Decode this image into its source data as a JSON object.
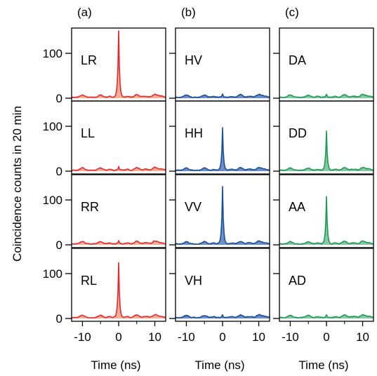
{
  "figure": {
    "ylabel": "Coincidence counts in 20 min",
    "xlabel": "Time (ns)"
  },
  "chart_data": {
    "type": "area",
    "xlim": [
      -13,
      13
    ],
    "ylim": [
      0,
      150
    ],
    "x_ticks": [
      -10,
      0,
      10
    ],
    "x_tick_labels": [
      "-10",
      "0",
      "10"
    ],
    "y_ticks": [
      0,
      100
    ],
    "y_tick_labels": [
      "0",
      "100"
    ],
    "colors": {
      "red": "#e8282d",
      "blue": "#1a4f9c",
      "green": "#1f9a56"
    },
    "columns": [
      {
        "label": "(a)",
        "color": "red",
        "show_y_ticks": true,
        "rows": [
          {
            "name": "LR",
            "peak": 150
          },
          {
            "name": "LL",
            "peak": 8
          },
          {
            "name": "RR",
            "peak": 8
          },
          {
            "name": "RL",
            "peak": 122
          }
        ]
      },
      {
        "label": "(b)",
        "color": "blue",
        "show_y_ticks": false,
        "rows": [
          {
            "name": "HV",
            "peak": 8
          },
          {
            "name": "HH",
            "peak": 95
          },
          {
            "name": "VV",
            "peak": 128
          },
          {
            "name": "VH",
            "peak": 6
          }
        ]
      },
      {
        "label": "(c)",
        "color": "green",
        "show_y_ticks": false,
        "rows": [
          {
            "name": "DA",
            "peak": 7
          },
          {
            "name": "DD",
            "peak": 88
          },
          {
            "name": "AA",
            "peak": 105
          },
          {
            "name": "AD",
            "peak": 6
          }
        ]
      }
    ]
  }
}
